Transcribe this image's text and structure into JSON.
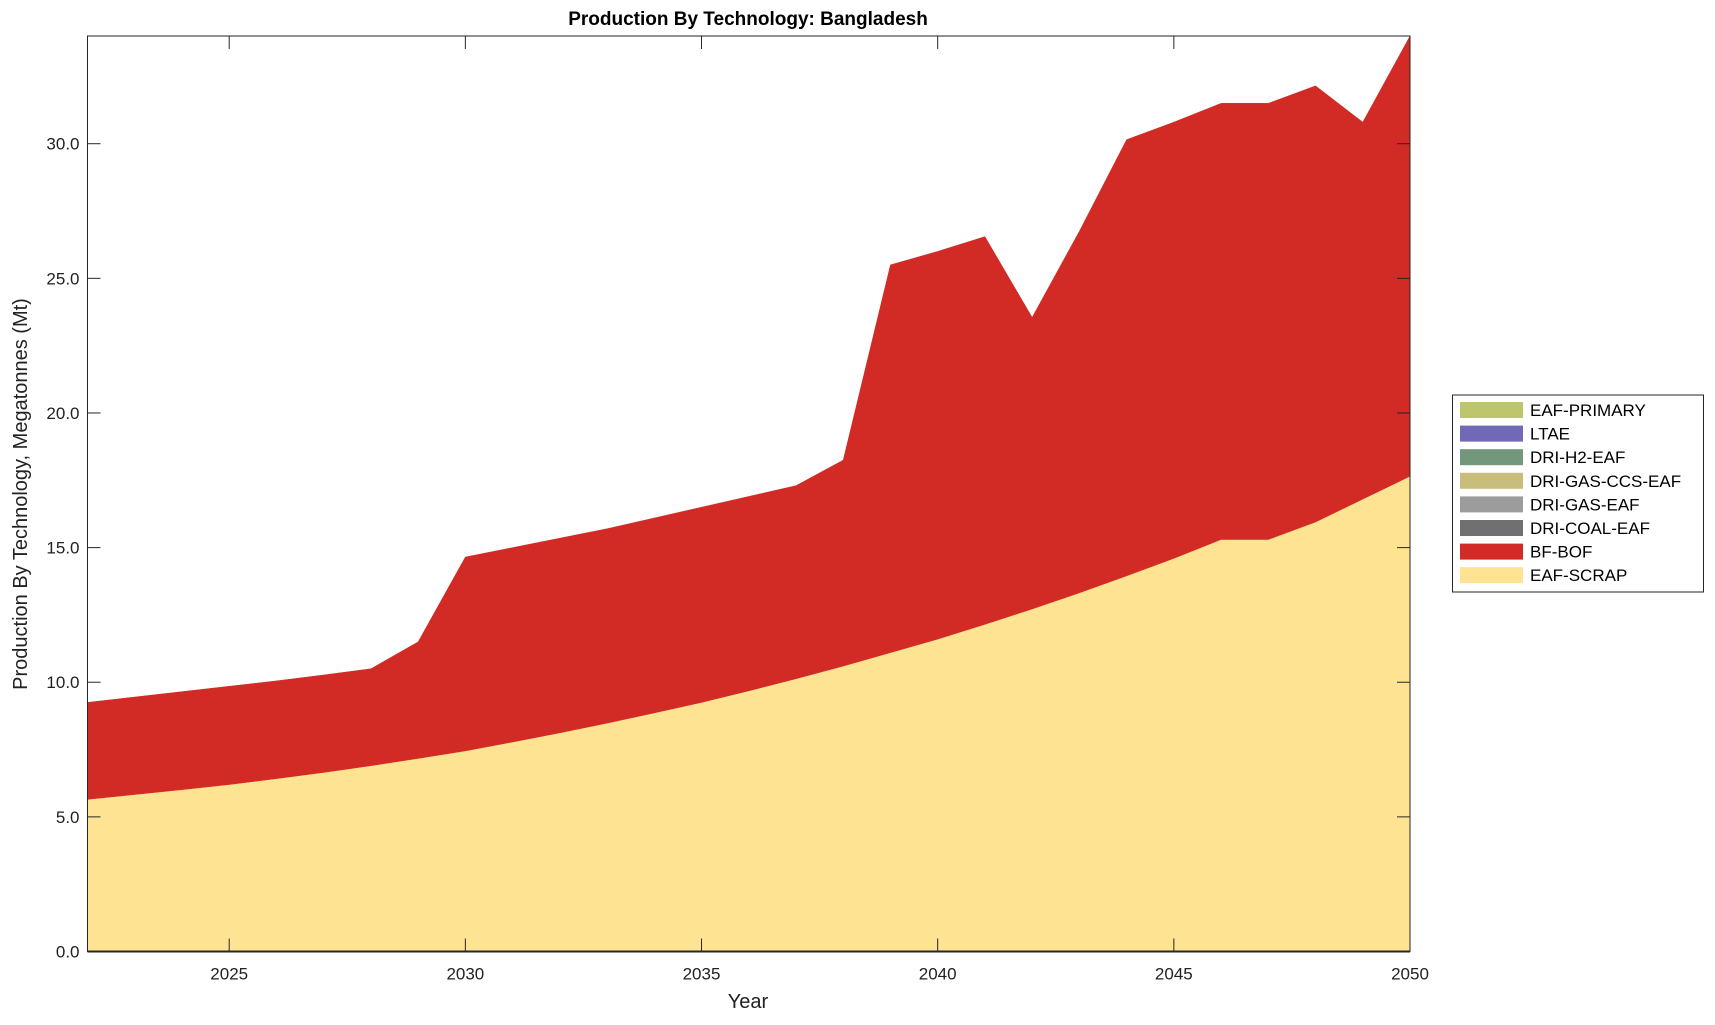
{
  "chart_data": {
    "type": "area",
    "stacked": true,
    "title": "Production By Technology: Bangladesh",
    "xlabel": "Year",
    "ylabel": "Production By Technology, Megatonnes (Mt)",
    "xlim": [
      2022,
      2050
    ],
    "ylim": [
      0,
      34
    ],
    "x_ticks": [
      2025,
      2030,
      2035,
      2040,
      2045,
      2050
    ],
    "y_ticks": [
      "0.0",
      "5.0",
      "10.0",
      "15.0",
      "20.0",
      "25.0",
      "30.0"
    ],
    "grid": false,
    "legend_placement": "right",
    "x": [
      2022,
      2023,
      2024,
      2025,
      2026,
      2027,
      2028,
      2029,
      2030,
      2031,
      2032,
      2033,
      2034,
      2035,
      2036,
      2037,
      2038,
      2039,
      2040,
      2041,
      2042,
      2043,
      2044,
      2045,
      2046,
      2047,
      2048,
      2049,
      2050
    ],
    "series": [
      {
        "name": "EAF-SCRAP",
        "color": "#fee392",
        "values": [
          5.65,
          5.83,
          6.01,
          6.2,
          6.42,
          6.65,
          6.9,
          7.17,
          7.45,
          7.78,
          8.12,
          8.48,
          8.86,
          9.25,
          9.68,
          10.13,
          10.6,
          11.1,
          11.6,
          12.15,
          12.72,
          13.32,
          13.95,
          14.6,
          15.3,
          15.3,
          15.95,
          16.8,
          17.65
        ]
      },
      {
        "name": "BF-BOF",
        "color": "#d22b25",
        "values": [
          3.6,
          3.62,
          3.64,
          3.65,
          3.63,
          3.62,
          3.6,
          4.33,
          7.2,
          7.22,
          7.23,
          7.22,
          7.24,
          7.25,
          7.22,
          7.17,
          7.65,
          14.4,
          14.4,
          14.4,
          10.83,
          13.43,
          16.2,
          16.2,
          16.2,
          16.2,
          16.2,
          14.0,
          16.35
        ]
      },
      {
        "name": "DRI-COAL-EAF",
        "color": "#707070",
        "values": [
          0,
          0,
          0,
          0,
          0,
          0,
          0,
          0,
          0,
          0,
          0,
          0,
          0,
          0,
          0,
          0,
          0,
          0,
          0,
          0,
          0,
          0,
          0,
          0,
          0,
          0,
          0,
          0,
          0
        ]
      },
      {
        "name": "DRI-GAS-EAF",
        "color": "#9c9c9c",
        "values": [
          0,
          0,
          0,
          0,
          0,
          0,
          0,
          0,
          0,
          0,
          0,
          0,
          0,
          0,
          0,
          0,
          0,
          0,
          0,
          0,
          0,
          0,
          0,
          0,
          0,
          0,
          0,
          0,
          0
        ]
      },
      {
        "name": "DRI-GAS-CCS-EAF",
        "color": "#c8bd7c",
        "values": [
          0,
          0,
          0,
          0,
          0,
          0,
          0,
          0,
          0,
          0,
          0,
          0,
          0,
          0,
          0,
          0,
          0,
          0,
          0,
          0,
          0,
          0,
          0,
          0,
          0,
          0,
          0,
          0,
          0
        ]
      },
      {
        "name": "DRI-H2-EAF",
        "color": "#73977b",
        "values": [
          0,
          0,
          0,
          0,
          0,
          0,
          0,
          0,
          0,
          0,
          0,
          0,
          0,
          0,
          0,
          0,
          0,
          0,
          0,
          0,
          0,
          0,
          0,
          0,
          0,
          0,
          0,
          0,
          0
        ]
      },
      {
        "name": "LTAE",
        "color": "#7268b8",
        "values": [
          0,
          0,
          0,
          0,
          0,
          0,
          0,
          0,
          0,
          0,
          0,
          0,
          0,
          0,
          0,
          0,
          0,
          0,
          0,
          0,
          0,
          0,
          0,
          0,
          0,
          0,
          0,
          0,
          0
        ]
      },
      {
        "name": "EAF-PRIMARY",
        "color": "#bec66c",
        "values": [
          0,
          0,
          0,
          0,
          0,
          0,
          0,
          0,
          0,
          0,
          0,
          0,
          0,
          0,
          0,
          0,
          0,
          0,
          0,
          0,
          0,
          0,
          0,
          0,
          0,
          0,
          0,
          0,
          0
        ]
      }
    ],
    "legend_order": [
      "EAF-PRIMARY",
      "LTAE",
      "DRI-H2-EAF",
      "DRI-GAS-CCS-EAF",
      "DRI-GAS-EAF",
      "DRI-COAL-EAF",
      "BF-BOF",
      "EAF-SCRAP"
    ]
  }
}
